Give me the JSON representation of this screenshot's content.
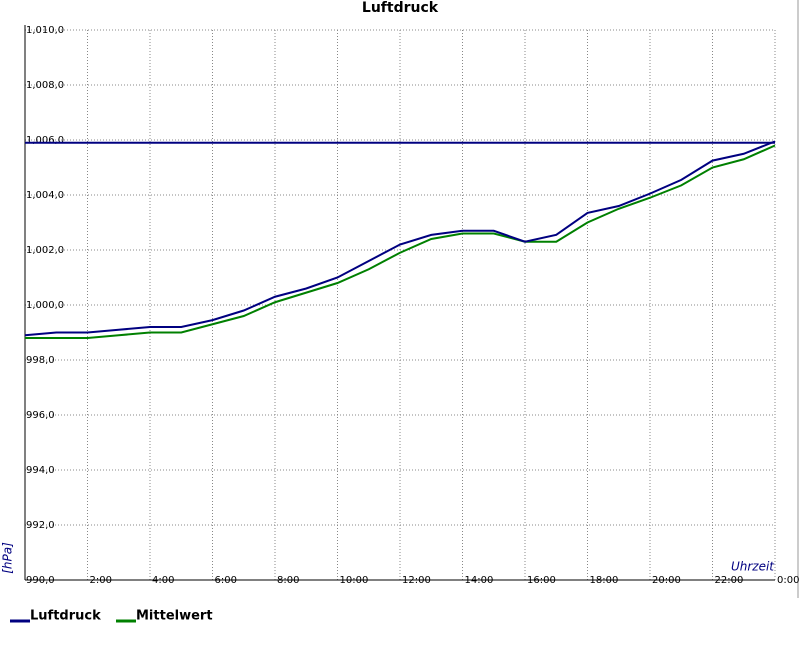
{
  "chart_data": {
    "type": "line",
    "title": "Luftdruck",
    "x_label": "Uhrzeit",
    "y_label": "[hPa]",
    "xlim": [
      0,
      24
    ],
    "ylim": [
      990,
      1010
    ],
    "xticks": [
      {
        "value": 2,
        "label": "2:00"
      },
      {
        "value": 4,
        "label": "4:00"
      },
      {
        "value": 6,
        "label": "6:00"
      },
      {
        "value": 8,
        "label": "8:00"
      },
      {
        "value": 10,
        "label": "10:00"
      },
      {
        "value": 12,
        "label": "12:00"
      },
      {
        "value": 14,
        "label": "14:00"
      },
      {
        "value": 16,
        "label": "16:00"
      },
      {
        "value": 18,
        "label": "18:00"
      },
      {
        "value": 20,
        "label": "20:00"
      },
      {
        "value": 22,
        "label": "22:00"
      },
      {
        "value": 24,
        "label": "0:00"
      }
    ],
    "yticks": [
      {
        "value": 990,
        "label": "990,0"
      },
      {
        "value": 992,
        "label": "992,0"
      },
      {
        "value": 994,
        "label": "994,0"
      },
      {
        "value": 996,
        "label": "996,0"
      },
      {
        "value": 998,
        "label": "998,0"
      },
      {
        "value": 1000,
        "label": "1,000,0"
      },
      {
        "value": 1002,
        "label": "1,002,0"
      },
      {
        "value": 1004,
        "label": "1,004,0"
      },
      {
        "value": 1006,
        "label": "1,006,0"
      },
      {
        "value": 1008,
        "label": "1,008,0"
      },
      {
        "value": 1010,
        "label": "1,010,0"
      }
    ],
    "grid": true,
    "reference_line": {
      "value": 1005.9,
      "color": "#000080"
    },
    "x": [
      0,
      1,
      2,
      3,
      4,
      5,
      6,
      7,
      8,
      9,
      10,
      11,
      12,
      13,
      14,
      15,
      16,
      17,
      18,
      19,
      20,
      21,
      22,
      23,
      24
    ],
    "series": [
      {
        "name": "Luftdruck",
        "color": "#000080",
        "values": [
          998.9,
          999.0,
          999.0,
          999.1,
          999.2,
          999.2,
          999.45,
          999.8,
          1000.3,
          1000.6,
          1001.0,
          1001.6,
          1002.2,
          1002.55,
          1002.7,
          1002.7,
          1002.3,
          1002.55,
          1003.35,
          1003.6,
          1004.05,
          1004.55,
          1005.25,
          1005.5,
          1005.95
        ]
      },
      {
        "name": "Mittelwert",
        "color": "#008000",
        "values": [
          998.8,
          998.8,
          998.8,
          998.9,
          999.0,
          999.0,
          999.3,
          999.6,
          1000.1,
          1000.45,
          1000.8,
          1001.3,
          1001.9,
          1002.4,
          1002.6,
          1002.6,
          1002.3,
          1002.3,
          1003.0,
          1003.5,
          1003.9,
          1004.35,
          1005.0,
          1005.3,
          1005.8
        ]
      }
    ],
    "legend": "bottom-left"
  }
}
